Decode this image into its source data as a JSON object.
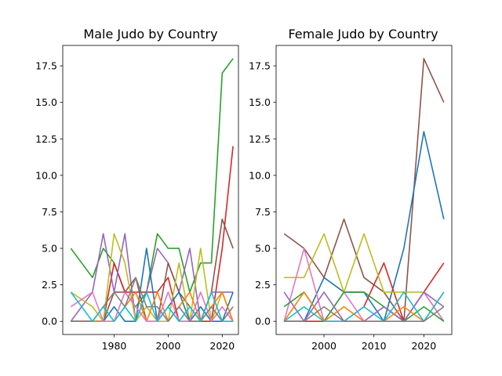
{
  "chart_data": [
    {
      "type": "line",
      "title": "Male Judo by Country",
      "xlabel": "",
      "ylabel": "",
      "xlim": [
        1961,
        2026
      ],
      "ylim": [
        -0.9,
        18.9
      ],
      "xticks": [
        1980,
        2000,
        2020
      ],
      "yticks": [
        0.0,
        2.5,
        5.0,
        7.5,
        10.0,
        12.5,
        15.0,
        17.5
      ],
      "xtick_labels": [
        "1980",
        "2000",
        "2020"
      ],
      "ytick_labels": [
        "0.0",
        "2.5",
        "5.0",
        "7.5",
        "10.0",
        "12.5",
        "15.0",
        "17.5"
      ],
      "grid": false,
      "series": [
        {
          "color": "#2ca02c",
          "x": [
            1964,
            1972,
            1976,
            1980,
            1984,
            1988,
            1992,
            1996,
            2000,
            2004,
            2008,
            2012,
            2016,
            2020,
            2024
          ],
          "y": [
            5,
            3,
            5,
            4,
            2,
            1,
            2,
            6,
            5,
            5,
            2,
            4,
            4,
            17,
            18
          ]
        },
        {
          "color": "#d62728",
          "x": [
            1964,
            1972,
            1976,
            1980,
            1984,
            1988,
            1992,
            1996,
            2000,
            2004,
            2008,
            2012,
            2016,
            2020,
            2024
          ],
          "y": [
            0,
            0,
            0,
            4,
            2,
            2,
            2,
            2,
            3,
            0,
            0,
            0,
            0,
            5,
            12
          ]
        },
        {
          "color": "#9467bd",
          "x": [
            1964,
            1972,
            1976,
            1980,
            1984,
            1988,
            1992,
            1996,
            2000,
            2004,
            2008,
            2012,
            2016,
            2020,
            2024
          ],
          "y": [
            0,
            2,
            6,
            2,
            6,
            0,
            2,
            5,
            4,
            2,
            5,
            0,
            2,
            2,
            2
          ]
        },
        {
          "color": "#8c564b",
          "x": [
            1964,
            1972,
            1976,
            1980,
            1984,
            1988,
            1992,
            1996,
            2000,
            2004,
            2008,
            2012,
            2016,
            2020,
            2024
          ],
          "y": [
            0,
            0,
            0,
            2,
            2,
            3,
            0,
            0,
            4,
            2,
            1,
            0,
            2,
            7,
            5
          ]
        },
        {
          "color": "#bcbd22",
          "x": [
            1964,
            1972,
            1976,
            1980,
            1984,
            1988,
            1992,
            1996,
            2000,
            2004,
            2008,
            2012,
            2016,
            2020,
            2024
          ],
          "y": [
            2,
            1,
            0,
            6,
            4,
            0,
            1,
            0,
            0,
            4,
            0,
            5,
            0,
            2,
            0
          ]
        },
        {
          "color": "#1f77b4",
          "x": [
            1964,
            1972,
            1976,
            1980,
            1984,
            1988,
            1992,
            1996,
            2000,
            2004,
            2008,
            2012,
            2016,
            2020,
            2024
          ],
          "y": [
            0,
            0,
            0,
            1,
            0,
            0,
            5,
            0,
            1,
            2,
            0,
            1,
            0,
            0,
            2
          ]
        },
        {
          "color": "#ff7f0e",
          "x": [
            1964,
            1972,
            1976,
            1980,
            1984,
            1988,
            1992,
            1996,
            2000,
            2004,
            2008,
            2012,
            2016,
            2020,
            2024
          ],
          "y": [
            0,
            0,
            0,
            0,
            1,
            2,
            0,
            2,
            0,
            1,
            2,
            0,
            1,
            2,
            0
          ]
        },
        {
          "color": "#e377c2",
          "x": [
            1964,
            1972,
            1976,
            1980,
            1984,
            1988,
            1992,
            1996,
            2000,
            2004,
            2008,
            2012,
            2016,
            2020,
            2024
          ],
          "y": [
            1,
            2,
            0,
            0,
            2,
            1,
            0,
            0,
            2,
            0,
            0,
            2,
            0,
            1,
            0
          ]
        },
        {
          "color": "#7f7f7f",
          "x": [
            1964,
            1972,
            1976,
            1980,
            1984,
            1988,
            1992,
            1996,
            2000,
            2004,
            2008,
            2012,
            2016,
            2020,
            2024
          ],
          "y": [
            0,
            0,
            1,
            2,
            1,
            3,
            1,
            1,
            0,
            1,
            0,
            0,
            1,
            0,
            1
          ]
        },
        {
          "color": "#17becf",
          "x": [
            1964,
            1972,
            1976,
            1980,
            1984,
            1988,
            1992,
            1996,
            2000,
            2004,
            2008,
            2012,
            2016,
            2020,
            2024
          ],
          "y": [
            2,
            0,
            1,
            0,
            1,
            0,
            2,
            0,
            1,
            0,
            1,
            0,
            2,
            0,
            0
          ]
        }
      ]
    },
    {
      "type": "line",
      "title": "Female Judo by Country",
      "xlabel": "",
      "ylabel": "",
      "xlim": [
        1990.4,
        2025.6
      ],
      "ylim": [
        -0.9,
        18.9
      ],
      "xticks": [
        2000,
        2010,
        2020
      ],
      "yticks": [
        0.0,
        2.5,
        5.0,
        7.5,
        10.0,
        12.5,
        15.0,
        17.5
      ],
      "xtick_labels": [
        "2000",
        "2010",
        "2020"
      ],
      "ytick_labels": [
        "0.0",
        "2.5",
        "5.0",
        "7.5",
        "10.0",
        "12.5",
        "15.0",
        "17.5"
      ],
      "grid": false,
      "series": [
        {
          "color": "#8c564b",
          "x": [
            1992,
            1996,
            2000,
            2004,
            2008,
            2012,
            2016,
            2020,
            2024
          ],
          "y": [
            6,
            5,
            3,
            7,
            3,
            2,
            0,
            18,
            15
          ]
        },
        {
          "color": "#1f77b4",
          "x": [
            1992,
            1996,
            2000,
            2004,
            2008,
            2012,
            2016,
            2020,
            2024
          ],
          "y": [
            0,
            0,
            3,
            2,
            2,
            0,
            5,
            13,
            7
          ]
        },
        {
          "color": "#d62728",
          "x": [
            1992,
            1996,
            2000,
            2004,
            2008,
            2012,
            2016,
            2020,
            2024
          ],
          "y": [
            0,
            0,
            0,
            0,
            1,
            4,
            0,
            2,
            4
          ]
        },
        {
          "color": "#bcbd22",
          "x": [
            1992,
            1996,
            2000,
            2004,
            2008,
            2012,
            2016,
            2020,
            2024
          ],
          "y": [
            3,
            3,
            6,
            2,
            6,
            2,
            2,
            2,
            0
          ]
        },
        {
          "color": "#e377c2",
          "x": [
            1992,
            1996,
            2000,
            2004,
            2008,
            2012,
            2016,
            2020,
            2024
          ],
          "y": [
            0,
            5,
            0,
            2,
            0,
            1,
            0,
            2,
            0
          ]
        },
        {
          "color": "#2ca02c",
          "x": [
            1992,
            1996,
            2000,
            2004,
            2008,
            2012,
            2016,
            2020,
            2024
          ],
          "y": [
            1,
            2,
            0,
            2,
            2,
            1,
            0,
            1,
            0
          ]
        },
        {
          "color": "#9467bd",
          "x": [
            1992,
            1996,
            2000,
            2004,
            2008,
            2012,
            2016,
            2020,
            2024
          ],
          "y": [
            2,
            0,
            2,
            0,
            0,
            1,
            0,
            2,
            1
          ]
        },
        {
          "color": "#ff7f0e",
          "x": [
            1992,
            1996,
            2000,
            2004,
            2008,
            2012,
            2016,
            2020,
            2024
          ],
          "y": [
            0,
            2,
            0,
            1,
            0,
            0,
            1,
            0,
            2
          ]
        },
        {
          "color": "#17becf",
          "x": [
            1992,
            1996,
            2000,
            2004,
            2008,
            2012,
            2016,
            2020,
            2024
          ],
          "y": [
            0,
            1,
            0,
            0,
            1,
            0,
            2,
            0,
            2
          ]
        },
        {
          "color": "#7f7f7f",
          "x": [
            1992,
            1996,
            2000,
            2004,
            2008,
            2012,
            2016,
            2020,
            2024
          ],
          "y": [
            0,
            0,
            1,
            0,
            0,
            0,
            0,
            0,
            1
          ]
        }
      ]
    }
  ]
}
